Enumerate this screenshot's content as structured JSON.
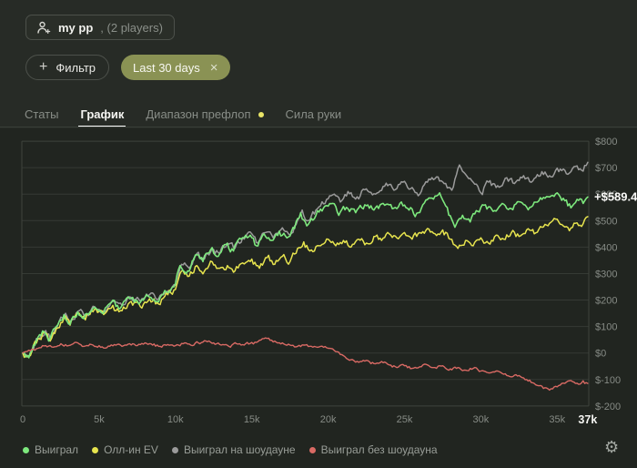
{
  "header": {
    "players_chip": {
      "icon": "person-add",
      "name": "my pp",
      "count": ", (2 players)"
    }
  },
  "filters": {
    "add_icon": "+",
    "add_label": "Фильтр",
    "date_chip": {
      "label": "Last 30 days",
      "close_icon": "×"
    }
  },
  "tabs": [
    {
      "label": "Статы",
      "active": false
    },
    {
      "label": "График",
      "active": true
    },
    {
      "label": "Диапазон префлоп",
      "active": false,
      "dot": true
    },
    {
      "label": "Сила руки",
      "active": false
    }
  ],
  "chart_data": {
    "type": "line",
    "x_axis": {
      "unit": "hands",
      "tick_labels": [
        "0",
        "5k",
        "10k",
        "15k",
        "20k",
        "25k",
        "30k",
        "35k"
      ],
      "tick_values_k": [
        0,
        5,
        10,
        15,
        20,
        25,
        30,
        35
      ],
      "end_tick_label": "37k",
      "end_tick_value_k": 37,
      "range_k": [
        0,
        37
      ]
    },
    "y_axis": {
      "unit": "USD",
      "tick_labels": [
        "$800",
        "$700",
        "$600",
        "$500",
        "$400",
        "$300",
        "$200",
        "$100",
        "$0",
        "$-100",
        "$-200"
      ],
      "tick_values": [
        800,
        700,
        600,
        500,
        400,
        300,
        200,
        100,
        0,
        -100,
        -200
      ],
      "range": [
        -200,
        800
      ]
    },
    "grid": "horizontal",
    "legend_position": "bottom",
    "current_value_label": "+$589.4",
    "current_value": 589.4,
    "series": [
      {
        "name": "Выиграл",
        "color": "#7de87d",
        "points": [
          [
            0,
            0
          ],
          [
            0.4,
            -18
          ],
          [
            1,
            60
          ],
          [
            1.4,
            80
          ],
          [
            1.7,
            45
          ],
          [
            2.2,
            100
          ],
          [
            2.7,
            145
          ],
          [
            3,
            110
          ],
          [
            3.6,
            155
          ],
          [
            4,
            130
          ],
          [
            4.6,
            170
          ],
          [
            5.2,
            150
          ],
          [
            5.8,
            190
          ],
          [
            6.4,
            170
          ],
          [
            7,
            205
          ],
          [
            7.6,
            185
          ],
          [
            8.2,
            215
          ],
          [
            8.8,
            195
          ],
          [
            9.4,
            230
          ],
          [
            9.9,
            250
          ],
          [
            10.3,
            330
          ],
          [
            10.8,
            310
          ],
          [
            11.3,
            370
          ],
          [
            11.8,
            345
          ],
          [
            12.3,
            390
          ],
          [
            12.8,
            365
          ],
          [
            13.3,
            410
          ],
          [
            13.8,
            385
          ],
          [
            14.3,
            430
          ],
          [
            14.9,
            445
          ],
          [
            15.3,
            405
          ],
          [
            15.8,
            450
          ],
          [
            16.3,
            425
          ],
          [
            16.8,
            460
          ],
          [
            17.3,
            435
          ],
          [
            17.8,
            470
          ],
          [
            18.2,
            530
          ],
          [
            18.6,
            480
          ],
          [
            19.2,
            520
          ],
          [
            19.8,
            555
          ],
          [
            20.3,
            565
          ],
          [
            20.7,
            520
          ],
          [
            21.2,
            550
          ],
          [
            21.8,
            530
          ],
          [
            22.4,
            560
          ],
          [
            23,
            540
          ],
          [
            23.6,
            565
          ],
          [
            24.2,
            545
          ],
          [
            24.8,
            570
          ],
          [
            25.3,
            540
          ],
          [
            25.7,
            515
          ],
          [
            26.2,
            560
          ],
          [
            26.8,
            585
          ],
          [
            27.3,
            605
          ],
          [
            27.8,
            550
          ],
          [
            28.3,
            475
          ],
          [
            28.8,
            520
          ],
          [
            29.3,
            495
          ],
          [
            29.8,
            535
          ],
          [
            30.3,
            560
          ],
          [
            30.8,
            535
          ],
          [
            31.4,
            565
          ],
          [
            32,
            545
          ],
          [
            32.6,
            570
          ],
          [
            33.2,
            550
          ],
          [
            33.8,
            575
          ],
          [
            34.4,
            590
          ],
          [
            35,
            605
          ],
          [
            35.5,
            575
          ],
          [
            35.9,
            548
          ],
          [
            36.3,
            580
          ],
          [
            36.7,
            565
          ],
          [
            37,
            589.4
          ]
        ]
      },
      {
        "name": "Олл-ин EV",
        "color": "#e7e44e",
        "points": [
          [
            0,
            0
          ],
          [
            0.4,
            -12
          ],
          [
            1,
            55
          ],
          [
            1.5,
            75
          ],
          [
            1.8,
            45
          ],
          [
            2.3,
            95
          ],
          [
            2.8,
            140
          ],
          [
            3.1,
            105
          ],
          [
            3.7,
            150
          ],
          [
            4.1,
            125
          ],
          [
            4.7,
            165
          ],
          [
            5.3,
            145
          ],
          [
            5.9,
            180
          ],
          [
            6.5,
            160
          ],
          [
            7.1,
            195
          ],
          [
            7.7,
            175
          ],
          [
            8.3,
            205
          ],
          [
            8.9,
            185
          ],
          [
            9.5,
            220
          ],
          [
            10,
            240
          ],
          [
            10.4,
            310
          ],
          [
            10.9,
            290
          ],
          [
            11.4,
            330
          ],
          [
            11.9,
            310
          ],
          [
            12.4,
            345
          ],
          [
            12.9,
            320
          ],
          [
            13.4,
            330
          ],
          [
            13.9,
            310
          ],
          [
            14.4,
            340
          ],
          [
            15,
            355
          ],
          [
            15.5,
            320
          ],
          [
            16,
            360
          ],
          [
            16.5,
            335
          ],
          [
            17,
            365
          ],
          [
            17.5,
            345
          ],
          [
            18,
            395
          ],
          [
            18.4,
            420
          ],
          [
            18.8,
            385
          ],
          [
            19.4,
            405
          ],
          [
            20,
            430
          ],
          [
            20.5,
            405
          ],
          [
            21,
            425
          ],
          [
            21.5,
            400
          ],
          [
            22,
            430
          ],
          [
            22.5,
            415
          ],
          [
            23,
            440
          ],
          [
            23.5,
            425
          ],
          [
            24,
            450
          ],
          [
            24.5,
            435
          ],
          [
            25,
            455
          ],
          [
            25.5,
            430
          ],
          [
            26,
            455
          ],
          [
            26.5,
            470
          ],
          [
            27,
            450
          ],
          [
            27.5,
            465
          ],
          [
            28,
            430
          ],
          [
            28.5,
            395
          ],
          [
            29,
            425
          ],
          [
            29.5,
            405
          ],
          [
            30,
            435
          ],
          [
            30.5,
            415
          ],
          [
            31,
            445
          ],
          [
            31.5,
            430
          ],
          [
            32,
            455
          ],
          [
            32.5,
            440
          ],
          [
            33,
            465
          ],
          [
            33.5,
            450
          ],
          [
            34,
            475
          ],
          [
            34.5,
            490
          ],
          [
            35,
            505
          ],
          [
            35.4,
            480
          ],
          [
            35.8,
            462
          ],
          [
            36.2,
            490
          ],
          [
            36.6,
            478
          ],
          [
            37,
            515
          ]
        ]
      },
      {
        "name": "Выиграл на шоудауне",
        "color": "#9b9b9b",
        "points": [
          [
            0,
            0
          ],
          [
            0.4,
            -10
          ],
          [
            1,
            55
          ],
          [
            1.5,
            85
          ],
          [
            1.8,
            55
          ],
          [
            2.3,
            105
          ],
          [
            2.8,
            150
          ],
          [
            3.1,
            120
          ],
          [
            3.7,
            160
          ],
          [
            4.1,
            140
          ],
          [
            4.7,
            175
          ],
          [
            5.3,
            160
          ],
          [
            5.9,
            195
          ],
          [
            6.5,
            180
          ],
          [
            7.1,
            210
          ],
          [
            7.7,
            195
          ],
          [
            8.3,
            220
          ],
          [
            8.9,
            205
          ],
          [
            9.5,
            235
          ],
          [
            10,
            255
          ],
          [
            10.4,
            335
          ],
          [
            10.9,
            320
          ],
          [
            11.4,
            375
          ],
          [
            11.9,
            355
          ],
          [
            12.4,
            395
          ],
          [
            12.9,
            375
          ],
          [
            13.4,
            415
          ],
          [
            13.9,
            395
          ],
          [
            14.4,
            435
          ],
          [
            15,
            450
          ],
          [
            15.4,
            415
          ],
          [
            15.9,
            455
          ],
          [
            16.4,
            435
          ],
          [
            16.9,
            465
          ],
          [
            17.4,
            450
          ],
          [
            17.9,
            485
          ],
          [
            18.3,
            540
          ],
          [
            18.7,
            500
          ],
          [
            19.3,
            545
          ],
          [
            19.9,
            580
          ],
          [
            20.4,
            600
          ],
          [
            20.8,
            570
          ],
          [
            21.3,
            610
          ],
          [
            21.9,
            590
          ],
          [
            22.5,
            620
          ],
          [
            23.1,
            600
          ],
          [
            23.7,
            630
          ],
          [
            24.3,
            615
          ],
          [
            24.9,
            645
          ],
          [
            25.5,
            625
          ],
          [
            26,
            600
          ],
          [
            26.5,
            645
          ],
          [
            27.1,
            665
          ],
          [
            27.6,
            640
          ],
          [
            28.1,
            615
          ],
          [
            28.6,
            710
          ],
          [
            29,
            675
          ],
          [
            29.5,
            645
          ],
          [
            30,
            605
          ],
          [
            30.5,
            645
          ],
          [
            31,
            625
          ],
          [
            31.6,
            660
          ],
          [
            32.2,
            640
          ],
          [
            32.8,
            670
          ],
          [
            33.4,
            650
          ],
          [
            34,
            685
          ],
          [
            34.6,
            665
          ],
          [
            35.2,
            695
          ],
          [
            35.7,
            675
          ],
          [
            36.2,
            705
          ],
          [
            36.6,
            690
          ],
          [
            37,
            720
          ]
        ]
      },
      {
        "name": "Выиграл без шоудауна",
        "color": "#d96a64",
        "points": [
          [
            0,
            0
          ],
          [
            0.5,
            8
          ],
          [
            1,
            18
          ],
          [
            1.5,
            28
          ],
          [
            2,
            22
          ],
          [
            2.5,
            35
          ],
          [
            3,
            28
          ],
          [
            3.5,
            40
          ],
          [
            4,
            25
          ],
          [
            4.5,
            32
          ],
          [
            5,
            28
          ],
          [
            5.5,
            20
          ],
          [
            6,
            32
          ],
          [
            6.5,
            25
          ],
          [
            7,
            35
          ],
          [
            7.5,
            28
          ],
          [
            8,
            38
          ],
          [
            8.5,
            30
          ],
          [
            9,
            25
          ],
          [
            9.5,
            32
          ],
          [
            10,
            28
          ],
          [
            10.5,
            35
          ],
          [
            11,
            30
          ],
          [
            11.5,
            38
          ],
          [
            12,
            45
          ],
          [
            12.5,
            38
          ],
          [
            13,
            30
          ],
          [
            13.5,
            25
          ],
          [
            14,
            35
          ],
          [
            14.5,
            30
          ],
          [
            15,
            40
          ],
          [
            15.5,
            48
          ],
          [
            16,
            55
          ],
          [
            16.5,
            45
          ],
          [
            17,
            38
          ],
          [
            17.5,
            30
          ],
          [
            18,
            25
          ],
          [
            18.5,
            30
          ],
          [
            19,
            22
          ],
          [
            19.5,
            25
          ],
          [
            20,
            18
          ],
          [
            20.5,
            5
          ],
          [
            21,
            -10
          ],
          [
            21.5,
            -25
          ],
          [
            22,
            -35
          ],
          [
            22.5,
            -28
          ],
          [
            23,
            -40
          ],
          [
            23.5,
            -32
          ],
          [
            24,
            -45
          ],
          [
            24.5,
            -55
          ],
          [
            25,
            -48
          ],
          [
            25.5,
            -58
          ],
          [
            26,
            -52
          ],
          [
            26.5,
            -45
          ],
          [
            27,
            -55
          ],
          [
            27.5,
            -48
          ],
          [
            28,
            -60
          ],
          [
            28.5,
            -55
          ],
          [
            29,
            -65
          ],
          [
            29.5,
            -58
          ],
          [
            30,
            -68
          ],
          [
            30.5,
            -75
          ],
          [
            31,
            -68
          ],
          [
            31.5,
            -80
          ],
          [
            32,
            -90
          ],
          [
            32.5,
            -85
          ],
          [
            33,
            -100
          ],
          [
            33.5,
            -115
          ],
          [
            34,
            -125
          ],
          [
            34.5,
            -140
          ],
          [
            35,
            -128
          ],
          [
            35.5,
            -115
          ],
          [
            36,
            -108
          ],
          [
            36.4,
            -118
          ],
          [
            36.7,
            -105
          ],
          [
            37,
            -115
          ]
        ]
      }
    ]
  },
  "footer": {
    "settings_icon": "gear",
    "settings_glyph": "⚙"
  }
}
